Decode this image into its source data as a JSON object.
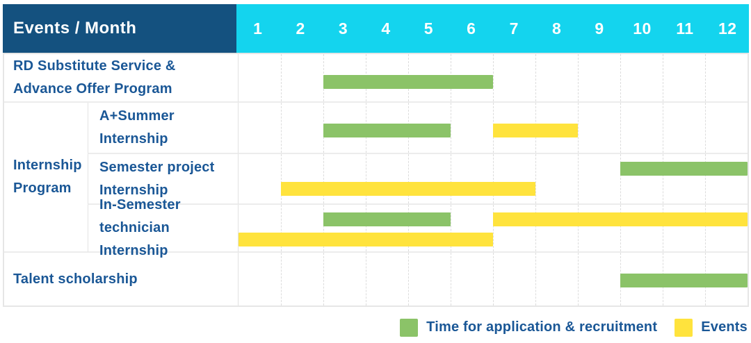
{
  "title_header": {
    "events_month": "Events / Month",
    "months": [
      "1",
      "2",
      "3",
      "4",
      "5",
      "6",
      "7",
      "8",
      "9",
      "10",
      "11",
      "12"
    ]
  },
  "group": {
    "label_lines": [
      "Internship",
      "Program"
    ]
  },
  "rows": [
    {
      "label_lines": [
        "RD Substitute Service &",
        "Advance Offer Program"
      ],
      "bars": [
        {
          "color": "green",
          "start": 3,
          "end": 6,
          "line": "single"
        }
      ]
    },
    {
      "label_lines": [
        "A+Summer",
        "Internship"
      ],
      "bars": [
        {
          "color": "green",
          "start": 3,
          "end": 5,
          "line": "single"
        },
        {
          "color": "yellow",
          "start": 7,
          "end": 8,
          "line": "single"
        }
      ]
    },
    {
      "label_lines": [
        "Semester project",
        "Internship"
      ],
      "bars": [
        {
          "color": "green",
          "start": 10,
          "end": 12,
          "line": "upper"
        },
        {
          "color": "yellow",
          "start": 2,
          "end": 7,
          "line": "lower"
        }
      ]
    },
    {
      "label_lines": [
        "In-Semester",
        "technician Internship"
      ],
      "bars": [
        {
          "color": "green",
          "start": 3,
          "end": 5,
          "line": "upper"
        },
        {
          "color": "yellow",
          "start": 7,
          "end": 12,
          "line": "upper"
        },
        {
          "color": "yellow",
          "start": 1,
          "end": 6,
          "line": "lower"
        }
      ]
    },
    {
      "label_lines": [
        "Talent scholarship"
      ],
      "bars": [
        {
          "color": "green",
          "start": 10,
          "end": 12,
          "line": "single"
        }
      ]
    }
  ],
  "legend": [
    {
      "color": "green",
      "label": "Time for application & recruitment"
    },
    {
      "color": "yellow",
      "label": "Events"
    }
  ],
  "colors": {
    "navy": "#14517f",
    "cyan": "#14d4ee",
    "green": "#8bc368",
    "yellow": "#ffe33d",
    "label_blue": "#1a5796"
  },
  "chart_data": {
    "type": "table",
    "title": "Events / Month",
    "x_axis": {
      "label": "Month",
      "ticks": [
        1,
        2,
        3,
        4,
        5,
        6,
        7,
        8,
        9,
        10,
        11,
        12
      ],
      "range": [
        1,
        12
      ]
    },
    "legend": [
      {
        "swatch": "green",
        "meaning": "Time for application & recruitment"
      },
      {
        "swatch": "yellow",
        "meaning": "Events"
      }
    ],
    "grid": true,
    "legend_position": "bottom-right",
    "rows": [
      {
        "event": "RD Substitute Service & Advance Offer Program",
        "group": null,
        "spans": [
          {
            "kind": "Time for application & recruitment",
            "months_start": 3,
            "months_end": 6
          }
        ]
      },
      {
        "event": "A+Summer Internship",
        "group": "Internship Program",
        "spans": [
          {
            "kind": "Time for application & recruitment",
            "months_start": 3,
            "months_end": 5
          },
          {
            "kind": "Events",
            "months_start": 7,
            "months_end": 8
          }
        ]
      },
      {
        "event": "Semester project Internship",
        "group": "Internship Program",
        "spans": [
          {
            "kind": "Time for application & recruitment",
            "months_start": 10,
            "months_end": 12
          },
          {
            "kind": "Events",
            "months_start": 2,
            "months_end": 7
          }
        ]
      },
      {
        "event": "In-Semester technician Internship",
        "group": "Internship Program",
        "spans": [
          {
            "kind": "Time for application & recruitment",
            "months_start": 3,
            "months_end": 5
          },
          {
            "kind": "Events",
            "months_start": 7,
            "months_end": 12
          },
          {
            "kind": "Events",
            "months_start": 1,
            "months_end": 6
          }
        ]
      },
      {
        "event": "Talent scholarship",
        "group": null,
        "spans": [
          {
            "kind": "Time for application & recruitment",
            "months_start": 10,
            "months_end": 12
          }
        ]
      }
    ]
  }
}
